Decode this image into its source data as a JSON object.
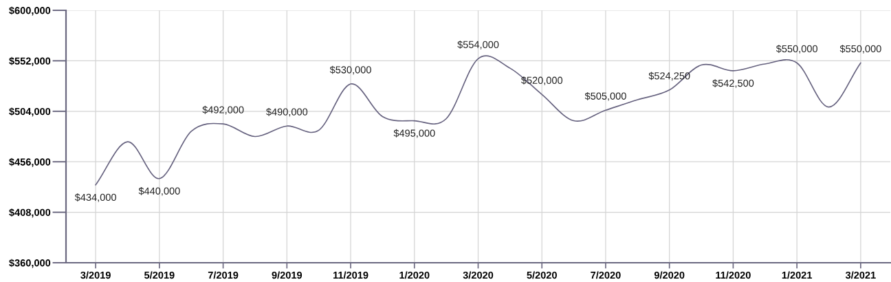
{
  "chart_data": {
    "type": "line",
    "categories": [
      "3/2019",
      null,
      "5/2019",
      null,
      "7/2019",
      null,
      "9/2019",
      null,
      "11/2019",
      null,
      "1/2020",
      null,
      "3/2020",
      null,
      "5/2020",
      null,
      "7/2020",
      null,
      "9/2020",
      null,
      "11/2020",
      null,
      "1/2021",
      null,
      "3/2021"
    ],
    "series": [
      {
        "color": "#66627f",
        "values": [
          434000,
          475000,
          440000,
          485000,
          492000,
          480000,
          490000,
          486000,
          530000,
          499000,
          495000,
          497000,
          554000,
          545000,
          520000,
          495000,
          505000,
          515000,
          524250,
          548000,
          542500,
          549000,
          550000,
          508000,
          550000
        ],
        "value_labels": [
          "$434,000",
          null,
          "$440,000",
          null,
          "$492,000",
          null,
          "$490,000",
          null,
          "$530,000",
          null,
          "$495,000",
          null,
          "$554,000",
          null,
          "$520,000",
          null,
          "$505,000",
          null,
          "$524,250",
          null,
          "$542,500",
          null,
          "$550,000",
          null,
          "$550,000"
        ]
      }
    ],
    "ylim": [
      360000,
      600000
    ],
    "yticks": [
      {
        "value": 360000,
        "label": "$360,000"
      },
      {
        "value": 408000,
        "label": "$408,000"
      },
      {
        "value": 456000,
        "label": "$456,000"
      },
      {
        "value": 504000,
        "label": "$504,000"
      },
      {
        "value": 552000,
        "label": "$552,000"
      },
      {
        "value": 600000,
        "label": "$600,000"
      }
    ],
    "grid": true,
    "line_style": "solid"
  }
}
